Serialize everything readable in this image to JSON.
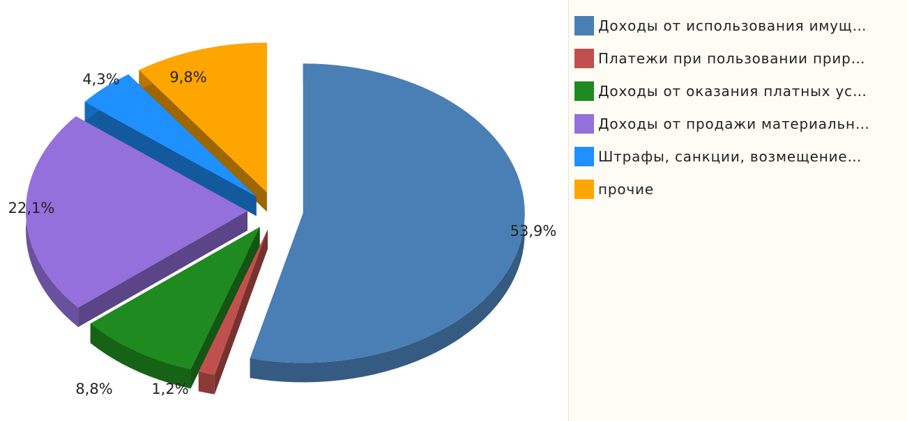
{
  "chart_data": {
    "type": "pie",
    "style": "3d-exploded",
    "categories": [
      "Доходы от использования имущ…",
      "Платежи при пользовании прир…",
      "Доходы от оказания платных ус…",
      "Доходы от продажи материальн…",
      "Штрафы, санкции, возмещение…",
      "прочие"
    ],
    "values": [
      53.9,
      1.2,
      8.8,
      22.1,
      4.3,
      9.8
    ],
    "data_labels": [
      "53,9%",
      "1,2%",
      "8,8%",
      "22,1%",
      "4,3%",
      "9,8%"
    ],
    "colors": [
      "#4a7fb5",
      "#c0504d",
      "#1f8a1f",
      "#9370db",
      "#1e90ff",
      "#ffa500"
    ],
    "legend_position": "right"
  }
}
